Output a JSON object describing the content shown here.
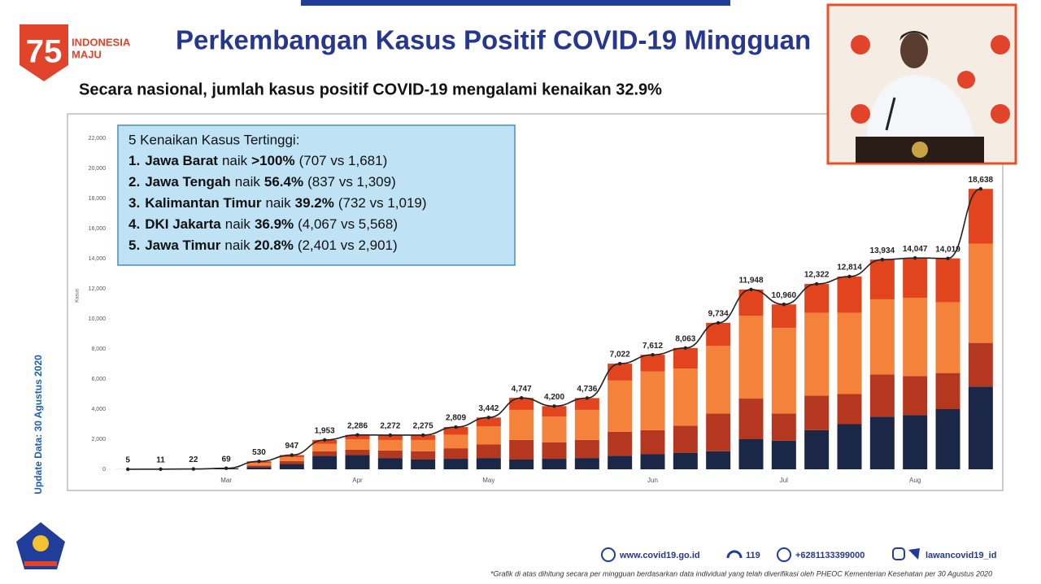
{
  "header": {
    "logo_text": [
      "INDONESIA",
      "MAJU"
    ],
    "title": "Perkembangan Kasus Positif COVID-19 Mingguan",
    "subtitle": "Secara nasional, jumlah kasus positif COVID-19 mengalami kenaikan 32.9%"
  },
  "side_note": "Update Data: 30 Agustus 2020",
  "highlight_box": {
    "heading": "5 Kenaikan Kasus Tertinggi:",
    "items": [
      {
        "rank": "1.",
        "region": "Jawa Barat",
        "verb": "naik",
        "change": ">100%",
        "detail": "(707 vs 1,681)"
      },
      {
        "rank": "2.",
        "region": "Jawa Tengah",
        "verb": "naik",
        "change": "56.4%",
        "detail": "(837 vs 1,309)"
      },
      {
        "rank": "3.",
        "region": "Kalimantan Timur",
        "verb": "naik",
        "change": "39.2%",
        "detail": "(732 vs 1,019)"
      },
      {
        "rank": "4.",
        "region": "DKI Jakarta",
        "verb": "naik",
        "change": "36.9%",
        "detail": "(4,067 vs 5,568)"
      },
      {
        "rank": "5.",
        "region": "Jawa Timur",
        "verb": "naik",
        "change": "20.8%",
        "detail": "(2,401 vs 2,901)"
      }
    ]
  },
  "chart_data": {
    "type": "bar",
    "stacked": true,
    "ylabel": "Kasus",
    "categories": [
      null,
      null,
      null,
      "Mar",
      null,
      null,
      null,
      "Apr",
      null,
      null,
      null,
      "May",
      null,
      null,
      null,
      null,
      "Jun",
      null,
      null,
      null,
      "Jul",
      null,
      null,
      null,
      "Aug",
      null,
      null
    ],
    "ylim": [
      0,
      22000
    ],
    "yticks": [
      0,
      {
        "value": 2000,
        "label": "2,000"
      },
      {
        "value": 4000,
        "label": "4,000"
      },
      {
        "value": 6000,
        "label": "6,000"
      },
      {
        "value": 8000,
        "label": "8,000"
      },
      {
        "value": 10000,
        "label": "10,000"
      },
      {
        "value": 12000,
        "label": "12,000"
      },
      {
        "value": 14000,
        "label": "14,000"
      },
      {
        "value": 16000,
        "label": "16,000"
      },
      {
        "value": 18000,
        "label": "18,000"
      },
      {
        "value": 20000,
        "label": "20,000"
      },
      {
        "value": 22000,
        "label": "22,000"
      }
    ],
    "grid": false,
    "series": [
      {
        "color": "#1b2747",
        "values": [
          5,
          11,
          22,
          69,
          150,
          350,
          900,
          950,
          750,
          650,
          700,
          750,
          650,
          700,
          750,
          900,
          1000,
          1100,
          1200,
          2000,
          1900,
          2600,
          3000,
          3500,
          3600,
          4000,
          5500
        ]
      },
      {
        "color": "#b5371f",
        "values": [
          0,
          0,
          0,
          0,
          100,
          200,
          300,
          350,
          500,
          550,
          700,
          900,
          1300,
          1100,
          1200,
          1600,
          1600,
          1800,
          2500,
          2700,
          1800,
          2300,
          2000,
          2800,
          2600,
          2400,
          2900
        ]
      },
      {
        "color": "#f5823a",
        "values": [
          0,
          0,
          0,
          0,
          180,
          250,
          500,
          700,
          700,
          750,
          900,
          1200,
          2000,
          1700,
          2000,
          3400,
          3900,
          3800,
          4500,
          5500,
          5700,
          5500,
          5400,
          5000,
          5200,
          4700,
          6600
        ]
      },
      {
        "color": "#e2441d",
        "values": [
          0,
          0,
          0,
          0,
          100,
          147,
          253,
          286,
          322,
          325,
          509,
          592,
          797,
          700,
          786,
          1122,
          1112,
          1363,
          1534,
          1748,
          1560,
          1922,
          2414,
          2634,
          2647,
          2919,
          3638
        ]
      },
      {
        "type": "line",
        "color": "#222222",
        "values": [
          5,
          11,
          22,
          69,
          530,
          947,
          1953,
          2286,
          2272,
          2275,
          2809,
          3442,
          4747,
          4200,
          4736,
          7022,
          7612,
          8063,
          9734,
          11948,
          10960,
          12322,
          12814,
          13934,
          14047,
          14019,
          18638
        ],
        "value_labels": [
          "5",
          "11",
          "22",
          "69",
          "530",
          "947",
          "1,953",
          "2,286",
          "2,272",
          "2,275",
          "2,809",
          "3,442",
          "4,747",
          "4,200",
          "4,736",
          "7,022",
          "7,612",
          "8,063",
          "9,734",
          "11,948",
          "10,960",
          "12,322",
          "12,814",
          "13,934",
          "14,047",
          "14,019",
          "18,638"
        ]
      }
    ]
  },
  "footer": {
    "website": "www.covid19.go.id",
    "hotline": "119",
    "whatsapp": "+6281133399000",
    "social": "lawancovid19_id",
    "note": "*Grafik di atas dihitung secara per mingguan berdasarkan data individual yang telah diverifikasi oleh PHEOC Kementerian Kesehatan per 30 Agustus 2020"
  }
}
